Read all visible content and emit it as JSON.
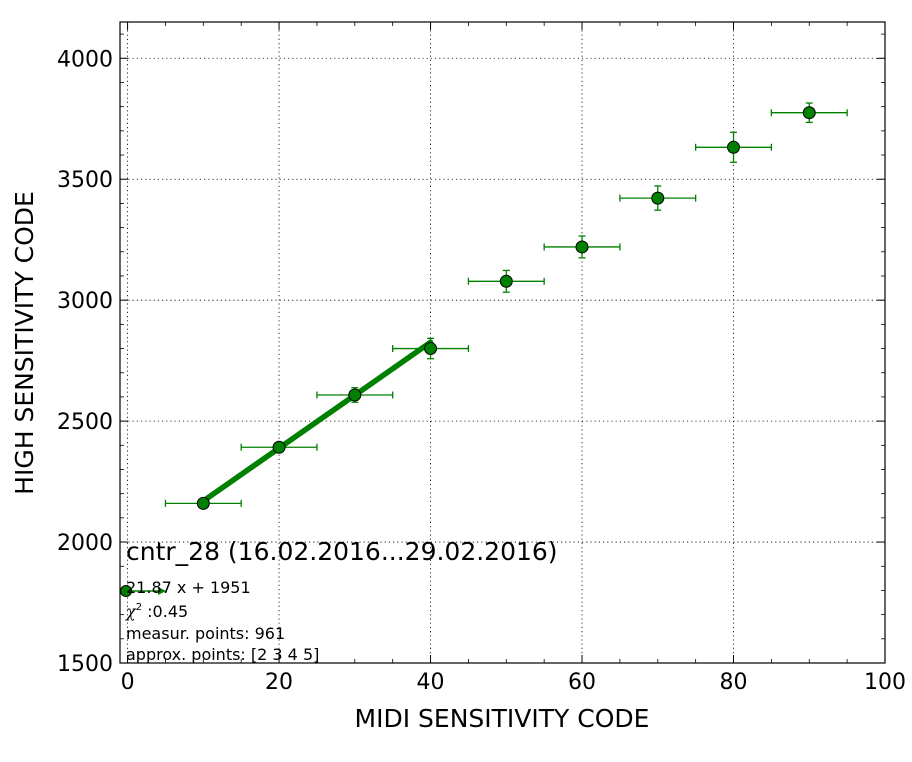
{
  "chart_data": {
    "type": "scatter",
    "xlabel": "MIDI SENSITIVITY CODE",
    "ylabel": "HIGH SENSITIVITY CODE",
    "xlim": [
      -1,
      100
    ],
    "ylim": [
      1500,
      4150
    ],
    "xticks": [
      0,
      20,
      40,
      60,
      80,
      100
    ],
    "yticks": [
      1500,
      2000,
      2500,
      3000,
      3500,
      4000
    ],
    "grid": true,
    "colors": {
      "points": "#008000",
      "errorbars": "#008000",
      "fit": "#008000",
      "marker_edge": "#000000"
    },
    "points": [
      {
        "x": 10,
        "y": 2160,
        "xerr": 5,
        "yerr": 12
      },
      {
        "x": 20,
        "y": 2392,
        "xerr": 5,
        "yerr": 15
      },
      {
        "x": 30,
        "y": 2608,
        "xerr": 5,
        "yerr": 30
      },
      {
        "x": 40,
        "y": 2800,
        "xerr": 5,
        "yerr": 42
      },
      {
        "x": 50,
        "y": 3078,
        "xerr": 5,
        "yerr": 45
      },
      {
        "x": 60,
        "y": 3220,
        "xerr": 5,
        "yerr": 45
      },
      {
        "x": 70,
        "y": 3422,
        "xerr": 5,
        "yerr": 50
      },
      {
        "x": 80,
        "y": 3632,
        "xerr": 5,
        "yerr": 62
      },
      {
        "x": 90,
        "y": 3775,
        "xerr": 5,
        "yerr": 40
      }
    ],
    "fit": {
      "slope": 21.87,
      "intercept": 1951,
      "x_range": [
        10,
        40
      ]
    },
    "annotation": {
      "title": "cntr_28 (16.02.2016...29.02.2016)",
      "equation": "21.87 x + 1951",
      "chi2_symbol": "χ",
      "chi2_exponent": "2",
      "chi2_value": " :0.45",
      "measured": "measur. points: 961",
      "approx": "approx. points: [2 3 4 5]"
    }
  }
}
